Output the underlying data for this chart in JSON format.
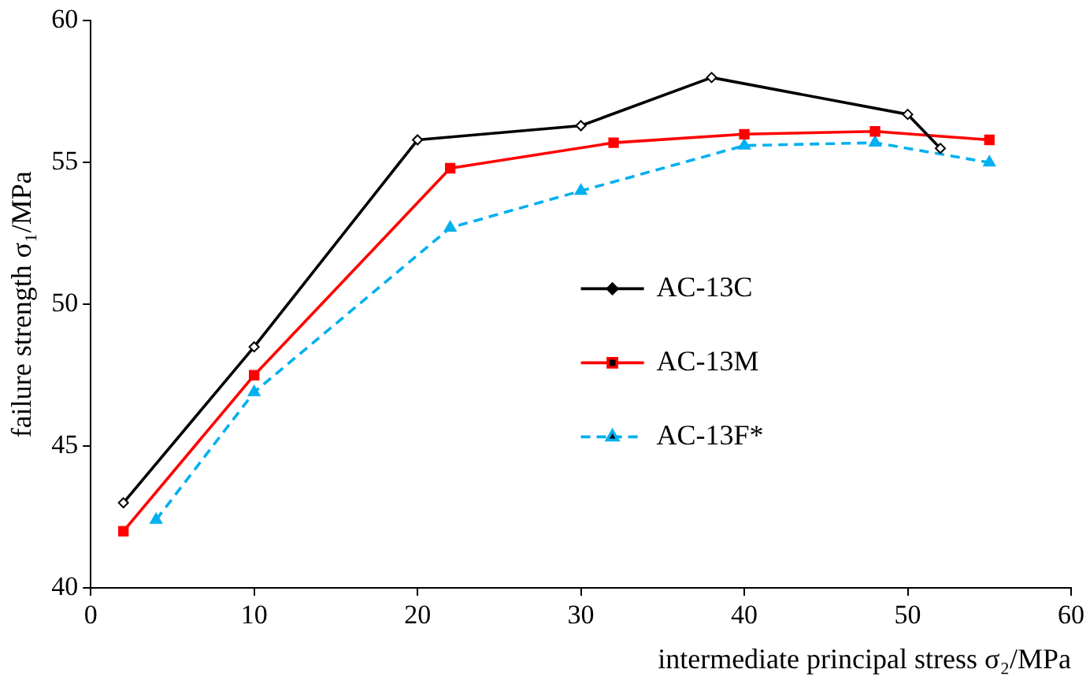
{
  "chart_data": {
    "type": "line",
    "xlabel": "intermediate principal stress σ₂/MPa",
    "ylabel": "failure strength σ₁/MPa",
    "xlim": [
      0,
      60
    ],
    "xticks": [
      0,
      10,
      20,
      30,
      40,
      50,
      60
    ],
    "ylim": [
      40,
      60
    ],
    "yticks": [
      40,
      45,
      50,
      55,
      60
    ],
    "grid": false,
    "legend": "right",
    "series": [
      {
        "name": "AC-13C",
        "color": "#000000",
        "marker": "diamond",
        "line_style": "solid",
        "x": [
          2,
          10,
          20,
          30,
          38,
          50,
          52
        ],
        "values": [
          43,
          48.5,
          55.8,
          56.3,
          58,
          56.7,
          55.5
        ]
      },
      {
        "name": "AC-13M",
        "color": "#ff0000",
        "marker": "square",
        "line_style": "solid",
        "x": [
          2,
          10,
          22,
          32,
          40,
          48,
          55
        ],
        "values": [
          42,
          47.5,
          54.8,
          55.7,
          56,
          56.1,
          55.8
        ]
      },
      {
        "name": "AC-13F*",
        "color": "#00b0f0",
        "marker": "triangle",
        "line_style": "dashed",
        "x": [
          4,
          10,
          22,
          30,
          40,
          48,
          55
        ],
        "values": [
          42.4,
          46.9,
          52.7,
          54,
          55.6,
          55.7,
          55
        ]
      }
    ]
  }
}
